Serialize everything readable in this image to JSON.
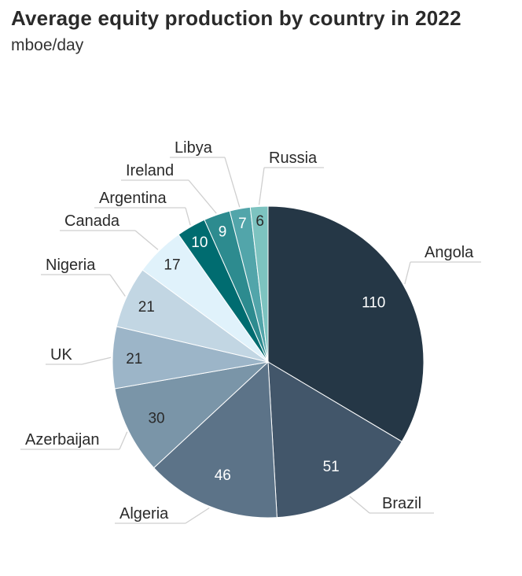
{
  "header": {
    "title": "Average equity production by country in 2022",
    "subtitle": "mboe/day"
  },
  "chart_data": {
    "type": "pie",
    "title": "Average equity production by country in 2022",
    "subtitle": "mboe/day",
    "start": "12 o'clock",
    "direction": "clockwise",
    "slices": [
      {
        "label": "Angola",
        "value": 110,
        "color": "#253746"
      },
      {
        "label": "Brazil",
        "value": 51,
        "color": "#42566a"
      },
      {
        "label": "Algeria",
        "value": 46,
        "color": "#5c7388"
      },
      {
        "label": "Azerbaijan",
        "value": 30,
        "color": "#7a95a8"
      },
      {
        "label": "UK",
        "value": 21,
        "color": "#9cb5c8"
      },
      {
        "label": "Nigeria",
        "value": 21,
        "color": "#c2d6e3"
      },
      {
        "label": "Canada",
        "value": 17,
        "color": "#e0f2fb"
      },
      {
        "label": "Argentina",
        "value": 10,
        "color": "#006c70"
      },
      {
        "label": "Ireland",
        "value": 9,
        "color": "#2d8b8f"
      },
      {
        "label": "Libya",
        "value": 7,
        "color": "#52a5aa"
      },
      {
        "label": "Russia",
        "value": 6,
        "color": "#7dc3c0"
      }
    ]
  }
}
